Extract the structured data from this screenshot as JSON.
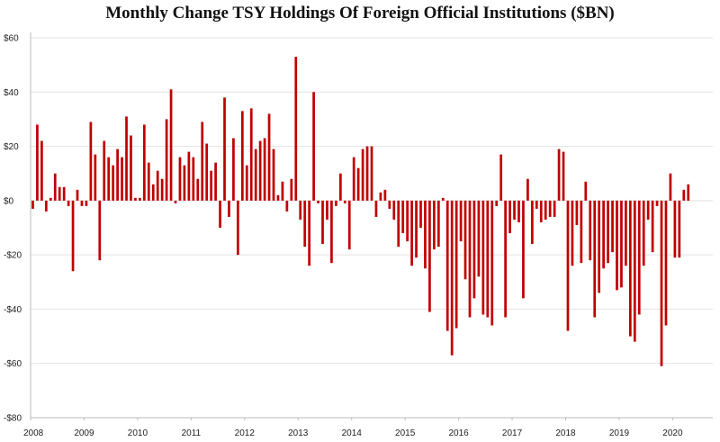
{
  "chart_data": {
    "type": "bar",
    "title": "Monthly Change TSY Holdings Of Foreign Official Institutions ($BN)",
    "xlabel": "",
    "ylabel": "",
    "ylim": [
      -80,
      60
    ],
    "yticks": [
      60,
      40,
      20,
      0,
      -20,
      -40,
      -60,
      -80
    ],
    "ytick_labels": [
      "$60",
      "$40",
      "$20",
      "$0",
      "-$20",
      "-$40",
      "-$60",
      "-$80"
    ],
    "xlim": [
      2008.0,
      2020.75
    ],
    "xticks": [
      2008,
      2009,
      2010,
      2011,
      2012,
      2013,
      2014,
      2015,
      2016,
      2017,
      2018,
      2019,
      2020
    ],
    "xtick_labels": [
      "2008",
      "2009",
      "2010",
      "2011",
      "2012",
      "2013",
      "2014",
      "2015",
      "2016",
      "2017",
      "2018",
      "2019",
      "2020"
    ],
    "bar_color": "#c00000",
    "start_year": 2008,
    "start_month": 1,
    "values": [
      -3,
      28,
      22,
      -4,
      1,
      10,
      5,
      5,
      -2,
      -26,
      4,
      -2,
      -2,
      29,
      17,
      -22,
      22,
      16,
      13,
      19,
      16,
      31,
      24,
      1,
      1,
      28,
      14,
      6,
      11,
      8,
      30,
      41,
      -1,
      16,
      13,
      18,
      16,
      8,
      29,
      21,
      11,
      14,
      -10,
      38,
      -6,
      23,
      -20,
      33,
      13,
      34,
      19,
      22,
      23,
      32,
      19,
      2,
      7,
      -4,
      8,
      53,
      -7,
      -17,
      -24,
      40,
      -1,
      -16,
      -7,
      -23,
      -2,
      10,
      -1,
      -18,
      16,
      12,
      19,
      20,
      20,
      -6,
      3,
      4,
      -3,
      -7,
      -17,
      -12,
      -15,
      -24,
      -21,
      -10,
      -25,
      -41,
      -18,
      -17,
      1,
      -48,
      -57,
      -47,
      -15,
      -29,
      -43,
      -36,
      -28,
      -42,
      -43,
      -46,
      -2,
      17,
      -43,
      -12,
      -7,
      -8,
      -36,
      8,
      -16,
      -3,
      -8,
      -7,
      -6,
      -6,
      19,
      18,
      -48,
      -24,
      -9,
      -23,
      7,
      -22,
      -43,
      -34,
      -25,
      -23,
      -19,
      -33,
      -32,
      -24,
      -50,
      -52,
      -42,
      -24,
      -7,
      -19,
      -2,
      -61,
      -46,
      10,
      -21,
      -21,
      4,
      6
    ]
  }
}
